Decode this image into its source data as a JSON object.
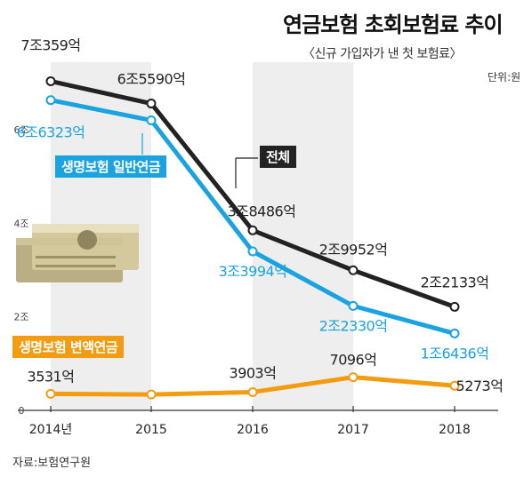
{
  "title": "연금보험 초회보험료 추이",
  "subtitle": "〈신규 가입자가 낸 첫 보험료〉",
  "unit": "단위:원",
  "source": "자료:보험연구원",
  "legend_tags": {
    "total": "전체",
    "life_general": "생명보험 일반연금",
    "life_variable": "생명보험 변액연금"
  },
  "colors": {
    "total": "#222222",
    "life_general": "#1aa3e0",
    "life_variable": "#f39c12",
    "shade": "#eeeeee"
  },
  "chart_data": {
    "type": "line",
    "title": "연금보험 초회보험료 추이",
    "subtitle": "〈신규 가입자가 낸 첫 보험료〉",
    "unit": "단위:원",
    "x_tick_labels": [
      "2014년",
      "2015",
      "2016",
      "2017",
      "2018"
    ],
    "y_tick_labels": [
      "0",
      "2조",
      "4조",
      "6조"
    ],
    "y_ticks": [
      0,
      2,
      4,
      6
    ],
    "ylim": [
      0,
      7.5
    ],
    "grid": false,
    "series": [
      {
        "name": "전체",
        "values": [
          7.0359,
          6.559,
          3.8486,
          2.9952,
          2.2133
        ],
        "labels": [
          "7조359억",
          "6조5590억",
          "3조8486억",
          "2조9952억",
          "2조2133억"
        ]
      },
      {
        "name": "생명보험 일반연금",
        "values": [
          6.6323,
          6.2,
          3.3994,
          2.233,
          1.6436
        ],
        "labels": [
          "6조6323억",
          "",
          "3조3994억",
          "2조2330억",
          "1조6436억"
        ]
      },
      {
        "name": "생명보험 변액연금",
        "values": [
          0.3531,
          0.34,
          0.3903,
          0.7096,
          0.5273
        ],
        "labels": [
          "3531억",
          "",
          "3903억",
          "7096억",
          "5273억"
        ]
      }
    ]
  }
}
